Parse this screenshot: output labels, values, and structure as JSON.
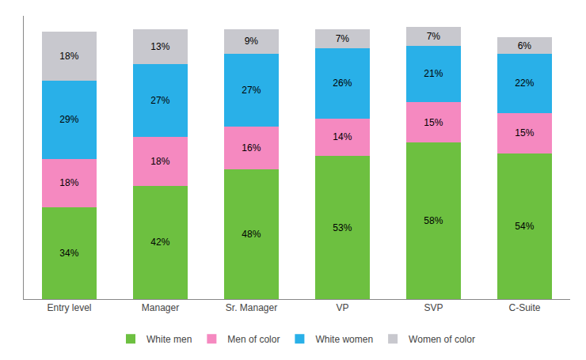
{
  "chart_data": {
    "type": "bar",
    "stacked": true,
    "data_labels": true,
    "categories": [
      "Entry level",
      "Manager",
      "Sr. Manager",
      "VP",
      "SVP",
      "C-Suite"
    ],
    "series": [
      {
        "name": "White men",
        "color": "#6DC040",
        "values": [
          34,
          42,
          48,
          53,
          58,
          54
        ],
        "value_labels": [
          "34%",
          "42%",
          "48%",
          "53%",
          "58%",
          "54%"
        ]
      },
      {
        "name": "Men of color",
        "color": "#F589C0",
        "values": [
          18,
          18,
          16,
          14,
          15,
          15
        ],
        "value_labels": [
          "18%",
          "18%",
          "16%",
          "14%",
          "15%",
          "15%"
        ]
      },
      {
        "name": "White women",
        "color": "#29B0E8",
        "values": [
          29,
          27,
          27,
          26,
          21,
          22
        ],
        "value_labels": [
          "29%",
          "27%",
          "27%",
          "26%",
          "21%",
          "22%"
        ]
      },
      {
        "name": "Women of color",
        "color": "#C8C8CE",
        "values": [
          18,
          13,
          9,
          7,
          7,
          6
        ],
        "value_labels": [
          "18%",
          "13%",
          "9%",
          "7%",
          "7%",
          "6%"
        ]
      }
    ],
    "ylim": [
      0,
      105
    ],
    "tick_labels": "x",
    "grid": false,
    "legend": "bottom"
  }
}
